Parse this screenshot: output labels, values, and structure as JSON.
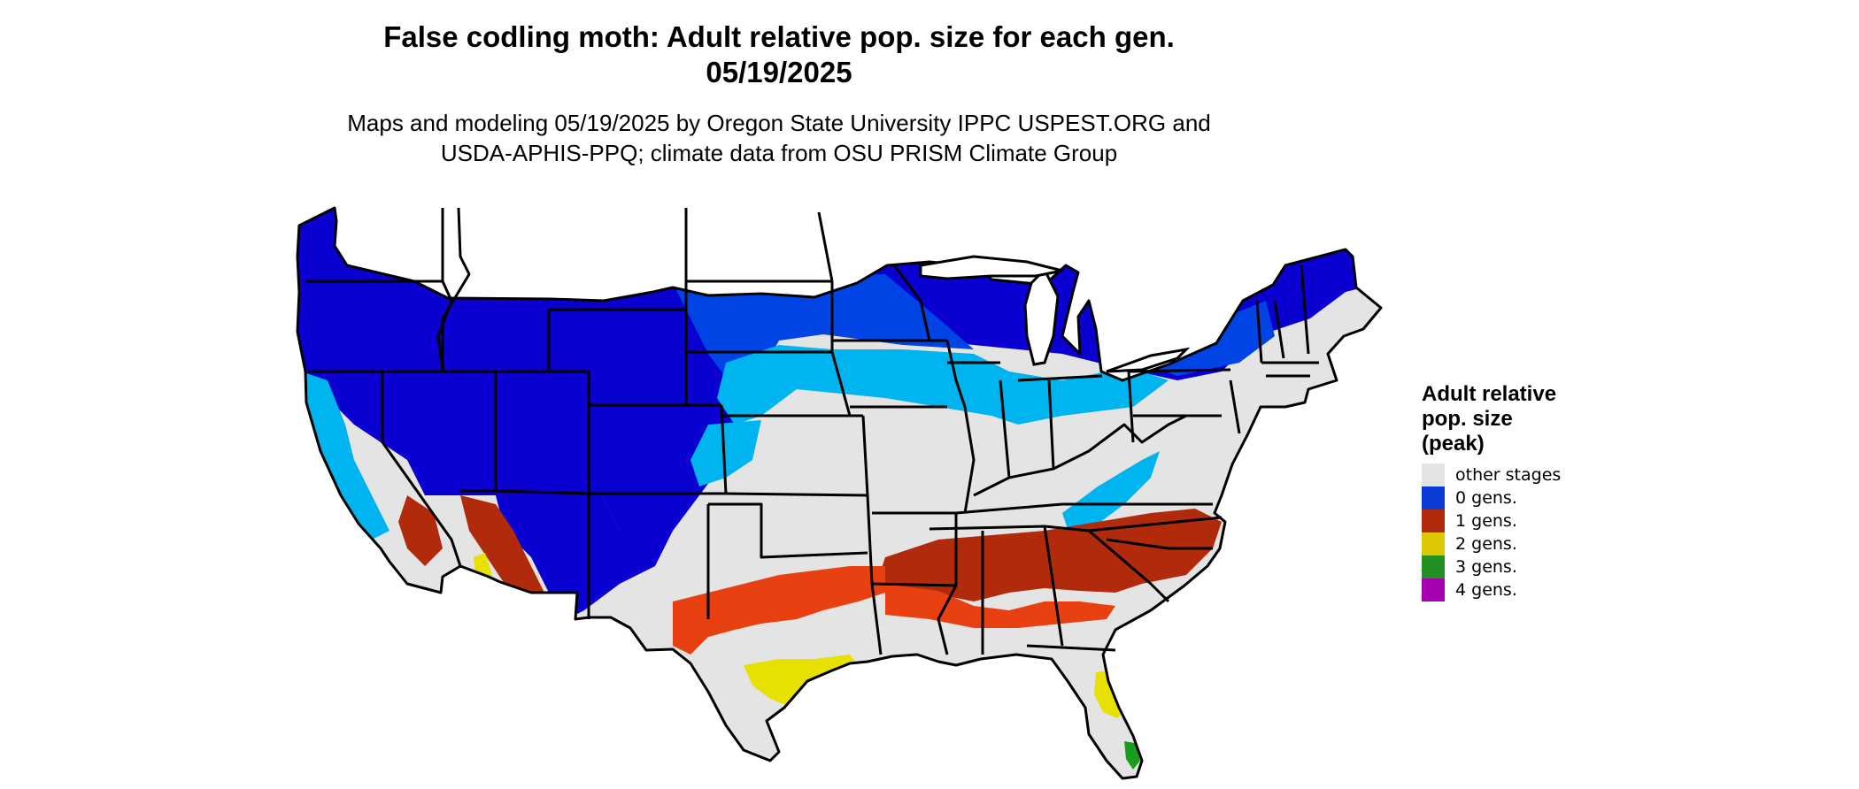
{
  "map": {
    "title": [
      "False codling moth: Adult relative pop. size for each gen.",
      "05/19/2025"
    ],
    "subtitle": [
      "Maps and modeling 05/19/2025 by Oregon State University IPPC USPEST.ORG and",
      "USDA-APHIS-PPQ; climate data from OSU PRISM Climate Group"
    ],
    "colors": {
      "background": "#ffffff",
      "state_border": "#000000",
      "deep_blue": "#0a00d2",
      "mid_blue": "#0044e6",
      "light_blue": "#00b4f0",
      "grey": "#e4e4e4",
      "red": "#b22a0c",
      "orange": "#e84010",
      "yellow": "#e8e000",
      "green": "#1a9d1a",
      "purple": "#a600b0"
    }
  },
  "legend": {
    "title": [
      "Adult relative",
      "pop. size",
      "(peak)"
    ],
    "items": [
      {
        "label": "other stages",
        "color": "#e4e4e4"
      },
      {
        "label": "0 gens.",
        "color": "#0a3bd7"
      },
      {
        "label": "1 gens.",
        "color": "#b22a0c"
      },
      {
        "label": "2 gens.",
        "color": "#dcc800"
      },
      {
        "label": "3 gens.",
        "color": "#229022"
      },
      {
        "label": "4 gens.",
        "color": "#a600b0"
      }
    ]
  }
}
